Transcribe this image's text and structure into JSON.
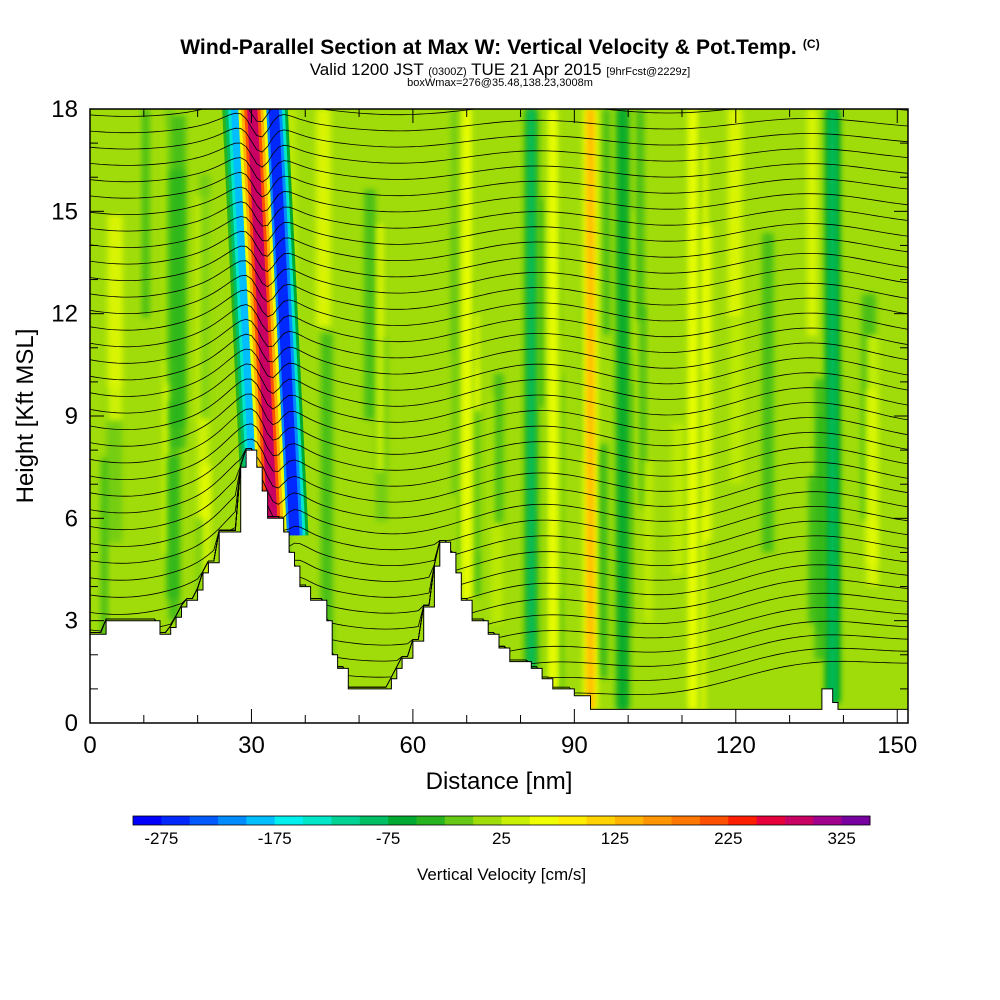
{
  "header": {
    "title": "Wind-Parallel Section at Max W: Vertical Velocity & Pot.Temp.",
    "copyright": "(C)",
    "valid_prefix": "Valid 1200 JST",
    "valid_utc": "(0300Z)",
    "valid_date": "TUE 21 Apr 2015",
    "forecast": "[9hrFcst@2229z]",
    "box_info": "boxWmax=276@35.48,138.23,3008m"
  },
  "chart_data": {
    "type": "heatmap",
    "title": "Wind-Parallel Section at Max W: Vertical Velocity & Pot.Temp.",
    "xlabel": "Distance [nm]",
    "ylabel": "Height [Kft MSL]",
    "xlim": [
      0,
      152
    ],
    "ylim": [
      0,
      18
    ],
    "x_ticks": [
      0,
      30,
      60,
      90,
      120,
      150
    ],
    "y_ticks": [
      0,
      3,
      6,
      9,
      12,
      15,
      18
    ],
    "colorbar": {
      "label": "Vertical Velocity [cm/s]",
      "tick_labels": [
        "-275",
        "-175",
        "-75",
        "25",
        "125",
        "225",
        "325"
      ],
      "min": -300,
      "max": 350,
      "colors": [
        "#0000ff",
        "#0028ff",
        "#005aff",
        "#008cff",
        "#00beff",
        "#00f0f0",
        "#00e6c8",
        "#00d296",
        "#00be64",
        "#00aa32",
        "#28b41e",
        "#64c814",
        "#a0dc0a",
        "#c8f000",
        "#f0ff00",
        "#ffee00",
        "#ffd200",
        "#ffb400",
        "#ff9600",
        "#ff7800",
        "#ff5000",
        "#ff1e00",
        "#e6003c",
        "#c80064",
        "#a0008c",
        "#7800a0"
      ]
    },
    "terrain_kft": [
      [
        0,
        2.6
      ],
      [
        3,
        2.6
      ],
      [
        3,
        3.0
      ],
      [
        8,
        3.0
      ],
      [
        8,
        3.0
      ],
      [
        13,
        3.0
      ],
      [
        13,
        2.6
      ],
      [
        15,
        2.6
      ],
      [
        15,
        2.8
      ],
      [
        16,
        2.8
      ],
      [
        16,
        3.1
      ],
      [
        17,
        3.1
      ],
      [
        17,
        3.4
      ],
      [
        18,
        3.4
      ],
      [
        18,
        3.6
      ],
      [
        20,
        3.6
      ],
      [
        20,
        3.9
      ],
      [
        21,
        3.9
      ],
      [
        21,
        4.4
      ],
      [
        22,
        4.4
      ],
      [
        22,
        4.7
      ],
      [
        24,
        4.7
      ],
      [
        24,
        5.6
      ],
      [
        28,
        5.6
      ],
      [
        28,
        7.5
      ],
      [
        29,
        7.5
      ],
      [
        29,
        8.0
      ],
      [
        31,
        8.0
      ],
      [
        31,
        7.5
      ],
      [
        32,
        7.5
      ],
      [
        32,
        6.8
      ],
      [
        33,
        6.8
      ],
      [
        33,
        6.0
      ],
      [
        34,
        6.0
      ],
      [
        34,
        6.0
      ],
      [
        36,
        6.0
      ],
      [
        36,
        5.6
      ],
      [
        37,
        5.6
      ],
      [
        37,
        5.0
      ],
      [
        38,
        5.0
      ],
      [
        38,
        4.6
      ],
      [
        39,
        4.6
      ],
      [
        39,
        4.0
      ],
      [
        41,
        4.0
      ],
      [
        41,
        3.6
      ],
      [
        44,
        3.6
      ],
      [
        44,
        3.0
      ],
      [
        45,
        3.0
      ],
      [
        45,
        2.0
      ],
      [
        46,
        2.0
      ],
      [
        46,
        1.6
      ],
      [
        48,
        1.6
      ],
      [
        48,
        1.0
      ],
      [
        50,
        1.0
      ],
      [
        50,
        1.0
      ],
      [
        56,
        1.0
      ],
      [
        56,
        1.3
      ],
      [
        57,
        1.3
      ],
      [
        57,
        1.6
      ],
      [
        58,
        1.6
      ],
      [
        58,
        1.9
      ],
      [
        60,
        1.9
      ],
      [
        60,
        2.4
      ],
      [
        62,
        2.4
      ],
      [
        62,
        3.4
      ],
      [
        64,
        3.4
      ],
      [
        64,
        4.6
      ],
      [
        65,
        4.6
      ],
      [
        65,
        5.3
      ],
      [
        67,
        5.3
      ],
      [
        67,
        5.0
      ],
      [
        68,
        5.0
      ],
      [
        68,
        4.4
      ],
      [
        69,
        4.4
      ],
      [
        69,
        3.6
      ],
      [
        71,
        3.6
      ],
      [
        71,
        3.0
      ],
      [
        74,
        3.0
      ],
      [
        74,
        2.6
      ],
      [
        76,
        2.6
      ],
      [
        76,
        2.2
      ],
      [
        78,
        2.2
      ],
      [
        78,
        1.8
      ],
      [
        82,
        1.8
      ],
      [
        82,
        1.6
      ],
      [
        84,
        1.6
      ],
      [
        84,
        1.3
      ],
      [
        86,
        1.3
      ],
      [
        86,
        1.0
      ],
      [
        90,
        1.0
      ],
      [
        90,
        0.8
      ],
      [
        93,
        0.8
      ],
      [
        93,
        0.4
      ],
      [
        104,
        0.4
      ],
      [
        104,
        0.4
      ],
      [
        136,
        0.4
      ],
      [
        136,
        1.0
      ],
      [
        138,
        1.0
      ],
      [
        138,
        0.6
      ],
      [
        139,
        0.6
      ],
      [
        139,
        0.4
      ],
      [
        152,
        0.4
      ]
    ],
    "velocity_features": [
      {
        "kind": "updraft",
        "x": 86,
        "peak_cm_s": 70
      },
      {
        "kind": "updraft",
        "x": 93,
        "peak_cm_s": 130
      },
      {
        "kind": "updraft",
        "x": 70,
        "peak_cm_s": 60
      },
      {
        "kind": "updraft",
        "x": 112,
        "peak_cm_s": 50
      },
      {
        "kind": "downdraft",
        "x": 82,
        "peak_cm_s": -80
      },
      {
        "kind": "downdraft",
        "x": 99,
        "peak_cm_s": -60
      },
      {
        "kind": "downdraft",
        "x": 138,
        "peak_cm_s": -90
      },
      {
        "kind": "updraft_wave",
        "x_base": 34,
        "peak_cm_s": 276
      },
      {
        "kind": "downdraft_wave",
        "x_base": 31,
        "peak_cm_s": -200
      },
      {
        "kind": "downdraft_wave",
        "x_base": 38,
        "peak_cm_s": -275
      }
    ]
  }
}
